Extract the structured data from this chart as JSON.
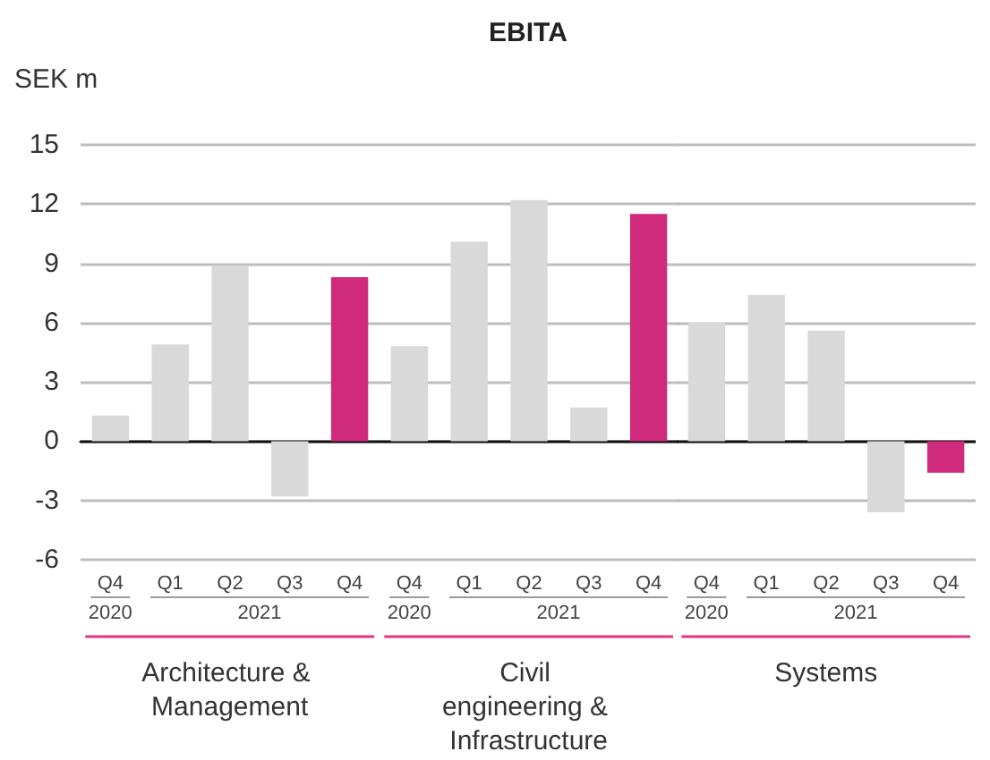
{
  "chart_data": [
    {
      "type": "bar",
      "ylabel": "SEK m",
      "xlabel": "Architecture & Management",
      "annotations": [
        "2020",
        "2021"
      ],
      "categories": [
        "Q4",
        "Q1",
        "Q2",
        "Q3",
        "Q4"
      ],
      "values": [
        1.3,
        4.9,
        8.9,
        -2.8,
        8.3
      ],
      "colors": [
        "#d9d9d9",
        "#d9d9d9",
        "#d9d9d9",
        "#d9d9d9",
        "#d02a7d"
      ],
      "ylim": [
        -6,
        15
      ],
      "yticks": [
        -6,
        -3,
        0,
        3,
        6,
        9,
        12,
        15
      ],
      "grid": "y"
    },
    {
      "type": "bar",
      "title": "EBITA",
      "xlabel": "Civil engineering & Infrastructure",
      "annotations": [
        "2020",
        "2021"
      ],
      "categories": [
        "Q4",
        "Q1",
        "Q2",
        "Q3",
        "Q4"
      ],
      "values": [
        4.8,
        10.1,
        12.2,
        1.7,
        11.5
      ],
      "colors": [
        "#d9d9d9",
        "#d9d9d9",
        "#d9d9d9",
        "#d9d9d9",
        "#d02a7d"
      ],
      "ylim": [
        -6,
        15
      ],
      "yticks": [
        -6,
        -3,
        0,
        3,
        6,
        9,
        12,
        15
      ],
      "grid": "y",
      "tick_labels": "x"
    },
    {
      "type": "bar",
      "xlabel": "Systems",
      "annotations": [
        "2020",
        "2021"
      ],
      "categories": [
        "Q4",
        "Q1",
        "Q2",
        "Q3",
        "Q4"
      ],
      "values": [
        6.0,
        7.4,
        5.6,
        -3.6,
        -1.6
      ],
      "colors": [
        "#d9d9d9",
        "#d9d9d9",
        "#d9d9d9",
        "#d9d9d9",
        "#d02a7d"
      ],
      "ylim": [
        -6,
        15
      ],
      "yticks": [
        -6,
        -3,
        0,
        3,
        6,
        9,
        12,
        15
      ],
      "grid": "y",
      "tick_labels": "x"
    }
  ]
}
